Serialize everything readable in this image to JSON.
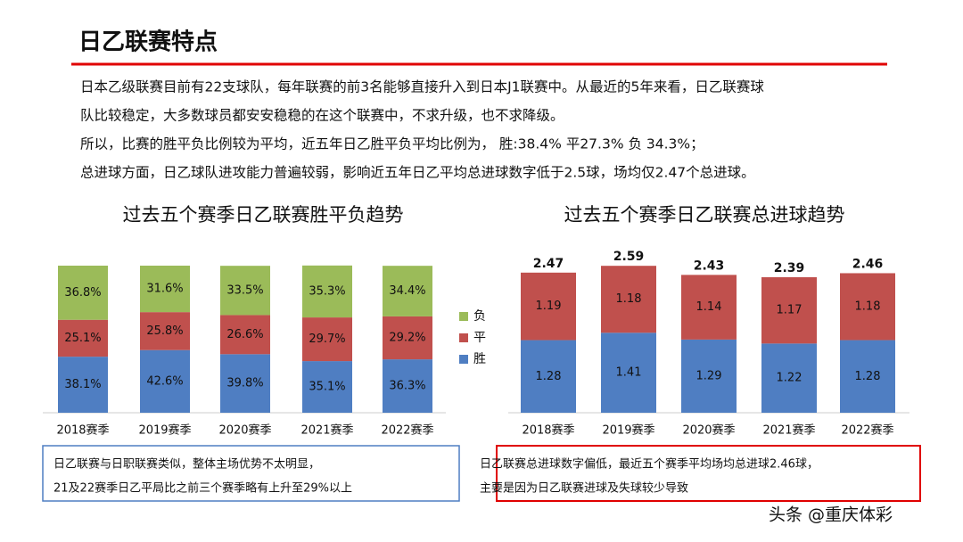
{
  "header": {
    "title": "日乙联赛特点"
  },
  "paragraphs": [
    "日本乙级联赛目前有22支球队，每年联赛的前3名能够直接升入到日本J1联赛中。从最近的5年来看，日乙联赛球",
    "队比较稳定，大多数球员都安安稳稳的在这个联赛中，不求升级，也不求降级。",
    "所以，比赛的胜平负比例较为平均，近五年日乙胜平负平均比例为， 胜:38.4% 平27.3% 负 34.3%；",
    "总进球方面，日乙球队进攻能力普遍较弱，影响近五年日乙平均总进球数字低于2.5球，场均仅2.47个总进球。"
  ],
  "chart_data": [
    {
      "type": "bar",
      "stacked": true,
      "title": "过去五个赛季日乙联赛胜平负趋势",
      "categories": [
        "2018赛季",
        "2019赛季",
        "2020赛季",
        "2021赛季",
        "2022赛季"
      ],
      "ylim": [
        0,
        100
      ],
      "legend": "right",
      "series": [
        {
          "name": "胜",
          "color": "#4f7ec2",
          "values": [
            38.1,
            42.6,
            39.8,
            35.1,
            36.3
          ],
          "value_labels": [
            "38.1%",
            "42.6%",
            "39.8%",
            "35.1%",
            "36.3%"
          ]
        },
        {
          "name": "平",
          "color": "#c0504d",
          "values": [
            25.1,
            25.8,
            26.6,
            29.7,
            29.2
          ],
          "value_labels": [
            "25.1%",
            "25.8%",
            "26.6%",
            "29.7%",
            "29.2%"
          ]
        },
        {
          "name": "负",
          "color": "#9bbb59",
          "values": [
            36.8,
            31.6,
            33.5,
            35.3,
            34.4
          ],
          "value_labels": [
            "36.8%",
            "31.6%",
            "33.5%",
            "35.3%",
            "34.4%"
          ]
        }
      ],
      "note": [
        "日乙联赛与日职联赛类似，整体主场优势不太明显，",
        "21及22赛季日乙平局比之前三个赛季略有上升至29%以上"
      ]
    },
    {
      "type": "bar",
      "stacked": true,
      "title": "过去五个赛季日乙联赛总进球趋势",
      "categories": [
        "2018赛季",
        "2019赛季",
        "2020赛季",
        "2021赛季",
        "2022赛季"
      ],
      "ylim": [
        0,
        2.75
      ],
      "series": [
        {
          "color": "#4f7ec2",
          "values": [
            1.28,
            1.41,
            1.29,
            1.22,
            1.28
          ]
        },
        {
          "color": "#c0504d",
          "values": [
            1.19,
            1.18,
            1.14,
            1.17,
            1.18
          ]
        }
      ],
      "totals": [
        2.47,
        2.59,
        2.43,
        2.39,
        2.46
      ],
      "note": [
        "日乙联赛总进球数字偏低，最近五个赛季平均场均总进球2.46球，",
        "主要是因为日乙联赛进球及失球较少导致"
      ]
    }
  ],
  "watermark": "头条 @重庆体彩"
}
